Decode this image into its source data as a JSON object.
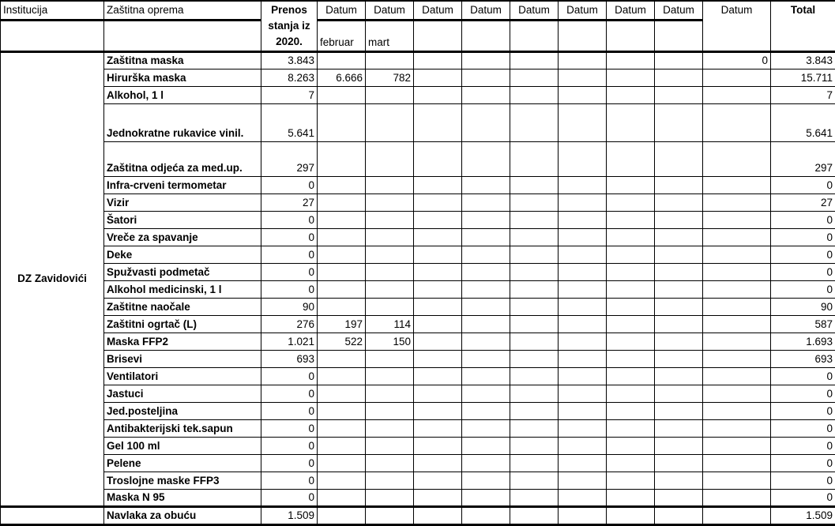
{
  "colors": {
    "border": "#000000",
    "background": "#ffffff",
    "text": "#000000"
  },
  "table": {
    "header": {
      "institution": "Institucija",
      "equipment": "Zaštitna oprema",
      "carryover": "Prenos stanja iz 2020.",
      "datum_label": "Datum",
      "total_label": "Total",
      "sub_february": "februar",
      "sub_march": "mart"
    },
    "blocks": [
      {
        "institution": "DZ Zavidovići",
        "rows": [
          {
            "item": "Zaštitna maska",
            "carryover": "3.843",
            "dates": [
              "",
              "",
              "",
              "",
              "",
              "",
              "",
              "",
              "0"
            ],
            "total": "3.843"
          },
          {
            "item": "Hirurška maska",
            "carryover": "8.263",
            "dates": [
              "6.666",
              "782",
              "",
              "",
              "",
              "",
              "",
              "",
              ""
            ],
            "total": "15.711"
          },
          {
            "item": "Alkohol, 1 l",
            "carryover": "7",
            "dates": [
              "",
              "",
              "",
              "",
              "",
              "",
              "",
              "",
              ""
            ],
            "total": "7"
          },
          {
            "item": "Jednokratne rukavice vinil.",
            "carryover": "5.641",
            "dates": [
              "",
              "",
              "",
              "",
              "",
              "",
              "",
              "",
              ""
            ],
            "total": "5.641"
          },
          {
            "item": "Zaštitna odjeća za med.up.",
            "carryover": "297",
            "dates": [
              "",
              "",
              "",
              "",
              "",
              "",
              "",
              "",
              ""
            ],
            "total": "297"
          },
          {
            "item": "Infra-crveni termometar",
            "carryover": "0",
            "dates": [
              "",
              "",
              "",
              "",
              "",
              "",
              "",
              "",
              ""
            ],
            "total": "0"
          },
          {
            "item": "Vizir",
            "carryover": "27",
            "dates": [
              "",
              "",
              "",
              "",
              "",
              "",
              "",
              "",
              ""
            ],
            "total": "27"
          },
          {
            "item": "Šatori",
            "carryover": "0",
            "dates": [
              "",
              "",
              "",
              "",
              "",
              "",
              "",
              "",
              ""
            ],
            "total": "0"
          },
          {
            "item": "Vreče za spavanje",
            "carryover": "0",
            "dates": [
              "",
              "",
              "",
              "",
              "",
              "",
              "",
              "",
              ""
            ],
            "total": "0"
          },
          {
            "item": "Deke",
            "carryover": "0",
            "dates": [
              "",
              "",
              "",
              "",
              "",
              "",
              "",
              "",
              ""
            ],
            "total": "0"
          },
          {
            "item": "Spužvasti podmetač",
            "carryover": "0",
            "dates": [
              "",
              "",
              "",
              "",
              "",
              "",
              "",
              "",
              ""
            ],
            "total": "0"
          },
          {
            "item": "Alkohol medicinski, 1 l",
            "carryover": "0",
            "dates": [
              "",
              "",
              "",
              "",
              "",
              "",
              "",
              "",
              ""
            ],
            "total": "0"
          },
          {
            "item": "Zaštitne naočale",
            "carryover": "90",
            "dates": [
              "",
              "",
              "",
              "",
              "",
              "",
              "",
              "",
              ""
            ],
            "total": "90"
          },
          {
            "item": "Zaštitni ogrtač (L)",
            "carryover": "276",
            "dates": [
              "197",
              "114",
              "",
              "",
              "",
              "",
              "",
              "",
              ""
            ],
            "total": "587"
          },
          {
            "item": "Maska FFP2",
            "carryover": "1.021",
            "dates": [
              "522",
              "150",
              "",
              "",
              "",
              "",
              "",
              "",
              ""
            ],
            "total": "1.693"
          },
          {
            "item": "Brisevi",
            "carryover": "693",
            "dates": [
              "",
              "",
              "",
              "",
              "",
              "",
              "",
              "",
              ""
            ],
            "total": "693"
          },
          {
            "item": "Ventilatori",
            "carryover": "0",
            "dates": [
              "",
              "",
              "",
              "",
              "",
              "",
              "",
              "",
              ""
            ],
            "total": "0"
          },
          {
            "item": "Jastuci",
            "carryover": "0",
            "dates": [
              "",
              "",
              "",
              "",
              "",
              "",
              "",
              "",
              ""
            ],
            "total": "0"
          },
          {
            "item": "Jed.posteljina",
            "carryover": "0",
            "dates": [
              "",
              "",
              "",
              "",
              "",
              "",
              "",
              "",
              ""
            ],
            "total": "0"
          },
          {
            "item": "Antibakterijski tek.sapun",
            "carryover": "0",
            "dates": [
              "",
              "",
              "",
              "",
              "",
              "",
              "",
              "",
              ""
            ],
            "total": "0"
          },
          {
            "item": "Gel 100 ml",
            "carryover": "0",
            "dates": [
              "",
              "",
              "",
              "",
              "",
              "",
              "",
              "",
              ""
            ],
            "total": "0"
          },
          {
            "item": "Pelene",
            "carryover": "0",
            "dates": [
              "",
              "",
              "",
              "",
              "",
              "",
              "",
              "",
              ""
            ],
            "total": "0"
          },
          {
            "item": "Troslojne maske FFP3",
            "carryover": "0",
            "dates": [
              "",
              "",
              "",
              "",
              "",
              "",
              "",
              "",
              ""
            ],
            "total": "0"
          },
          {
            "item": "Maska N 95",
            "carryover": "0",
            "dates": [
              "",
              "",
              "",
              "",
              "",
              "",
              "",
              "",
              ""
            ],
            "total": "0"
          }
        ]
      },
      {
        "institution": "",
        "rows": [
          {
            "item": "Navlaka za obuću",
            "carryover": "1.509",
            "dates": [
              "",
              "",
              "",
              "",
              "",
              "",
              "",
              "",
              ""
            ],
            "total": "1.509"
          }
        ]
      }
    ]
  }
}
